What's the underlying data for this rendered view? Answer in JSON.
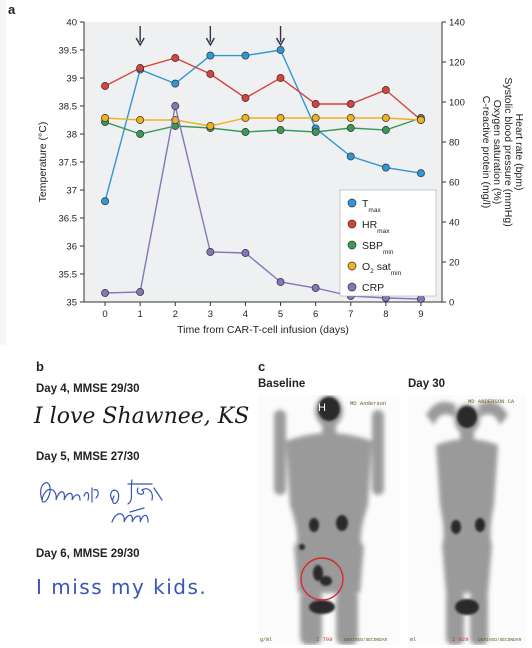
{
  "panel_a": {
    "label": "a",
    "chart_data": {
      "type": "line",
      "x": [
        0,
        1,
        2,
        3,
        4,
        5,
        6,
        7,
        8,
        9
      ],
      "xlabel": "Time from CAR-T-cell infusion (days)",
      "ylabel_left": "Temperature (°C)",
      "ylabel_right": [
        "Heart rate (bpm)",
        "Systolic blood pressure (mmHg)",
        "Oxygen saturation (%)",
        "C-reactive protein (mg/l)"
      ],
      "ylim_left": [
        35,
        40
      ],
      "ylim_right": [
        0,
        140
      ],
      "yticks_left": [
        "35",
        "35.5",
        "36",
        "36.5",
        "37",
        "37.5",
        "38",
        "38.5",
        "39",
        "39.5",
        "40"
      ],
      "yticks_right": [
        "0",
        "20",
        "40",
        "60",
        "80",
        "100",
        "120",
        "140"
      ],
      "xticks": [
        "0",
        "1",
        "2",
        "3",
        "4",
        "5",
        "6",
        "7",
        "8",
        "9"
      ],
      "arrows_at_day": [
        1,
        3,
        5
      ],
      "legend_position": "lower-right",
      "series": [
        {
          "name": "T",
          "sub": "max",
          "axis": "left",
          "color": "#2f97d3",
          "values": [
            36.8,
            39.15,
            38.9,
            39.4,
            39.4,
            39.5,
            38.1,
            37.6,
            37.4,
            37.3
          ]
        },
        {
          "name": "HR",
          "sub": "max",
          "axis": "right",
          "color": "#d9413a",
          "values": [
            108,
            117,
            122,
            114,
            102,
            112,
            99,
            99,
            106,
            91
          ]
        },
        {
          "name": "SBP",
          "sub": "min",
          "axis": "right",
          "color": "#3a9a55",
          "values": [
            90,
            84,
            88,
            87,
            85,
            86,
            85,
            87,
            86,
            92
          ]
        },
        {
          "name": "O",
          "sub2": "2",
          "suffix": " sat",
          "sub": "min",
          "axis": "right",
          "color": "#f2b01e",
          "values": [
            92,
            91,
            91,
            88,
            92,
            92,
            92,
            92,
            92,
            91
          ]
        },
        {
          "name": "CRP",
          "axis": "right",
          "color": "#8377b8",
          "values": [
            4.5,
            5,
            98,
            25,
            24.5,
            10,
            7,
            3,
            2,
            1.5
          ]
        }
      ]
    }
  },
  "panel_b": {
    "label": "b",
    "entries": [
      {
        "title": "Day 4, MMSE 29/30",
        "writing": "I love Shawnee, KS."
      },
      {
        "title": "Day 5, MMSE 27/30",
        "writing": ""
      },
      {
        "title": "Day 6, MMSE 29/30",
        "writing": "I miss my kids."
      }
    ]
  },
  "panel_c": {
    "label": "c",
    "scans": [
      {
        "title": "Baseline",
        "header": "MD Anderson",
        "footer_left": "g/ml",
        "footer_mid": "I 798",
        "footer_right": "DERIVED/SECONDAR",
        "corner": "H"
      },
      {
        "title": "Day 30",
        "header": "MD ANDERSON CA",
        "footer_left": "ml",
        "footer_mid": "I 929",
        "footer_right": "DERIVED/SECONDAR"
      }
    ]
  }
}
